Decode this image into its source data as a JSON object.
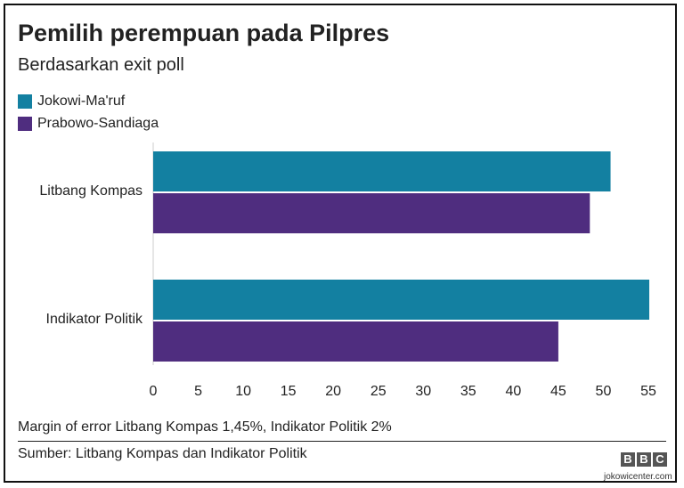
{
  "title": "Pemilih perempuan pada Pilpres",
  "subtitle": "Berdasarkan exit poll",
  "colors": {
    "jokowi": "#1380A1",
    "prabowo": "#4F2D7F",
    "axis": "#222222"
  },
  "chart_data": {
    "type": "bar",
    "orientation": "horizontal",
    "categories": [
      "Litbang Kompas",
      "Indikator Politik"
    ],
    "series": [
      {
        "name": "Jokowi-Ma'ruf",
        "color": "#1380A1",
        "values": [
          50.8,
          55.1
        ]
      },
      {
        "name": "Prabowo-Sandiaga",
        "color": "#4F2D7F",
        "values": [
          48.5,
          45.0
        ]
      }
    ],
    "xlim": [
      0,
      55
    ],
    "xticks": [
      "0",
      "5",
      "10",
      "15",
      "20",
      "25",
      "30",
      "35",
      "40",
      "45",
      "50",
      "55"
    ],
    "grid": false,
    "legend": "top-left"
  },
  "note": "Margin of error Litbang Kompas 1,45%, Indikator Politik 2%",
  "source": "Sumber: Litbang Kompas dan Indikator Politik",
  "logo": [
    "B",
    "B",
    "C"
  ],
  "watermark": "jokowicenter.com"
}
